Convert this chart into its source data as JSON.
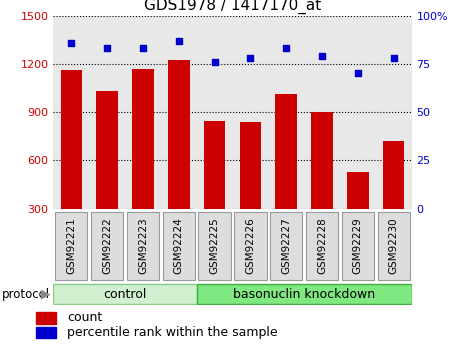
{
  "title": "GDS1978 / 1417170_at",
  "categories": [
    "GSM92221",
    "GSM92222",
    "GSM92223",
    "GSM92224",
    "GSM92225",
    "GSM92226",
    "GSM92227",
    "GSM92228",
    "GSM92229",
    "GSM92230"
  ],
  "bar_values": [
    1160,
    1030,
    1165,
    1225,
    845,
    840,
    1010,
    900,
    530,
    720
  ],
  "scatter_values": [
    86,
    83,
    83,
    87,
    76,
    78,
    83,
    79,
    70,
    78
  ],
  "bar_color": "#cc0000",
  "scatter_color": "#0000cc",
  "ylim_left": [
    300,
    1500
  ],
  "ylim_right": [
    0,
    100
  ],
  "yticks_left": [
    300,
    600,
    900,
    1200,
    1500
  ],
  "yticks_right": [
    0,
    25,
    50,
    75,
    100
  ],
  "yticklabels_right": [
    "0",
    "25",
    "50",
    "75",
    "100%"
  ],
  "group1_label": "control",
  "group2_label": "basonuclin knockdown",
  "group1_count": 4,
  "group2_count": 6,
  "protocol_label": "protocol",
  "legend_bar_label": "count",
  "legend_scatter_label": "percentile rank within the sample",
  "plot_bg": "#e8e8e8",
  "group1_color": "#d0f0d0",
  "group2_color": "#80e880",
  "title_fontsize": 11,
  "tick_fontsize": 8,
  "label_fontsize": 9
}
